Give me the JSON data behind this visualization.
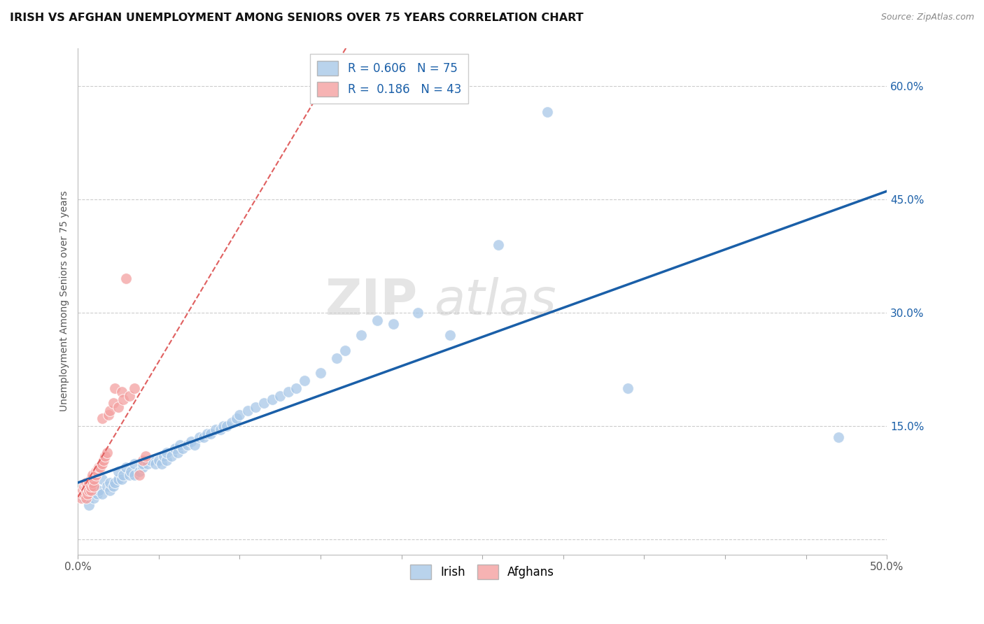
{
  "title": "IRISH VS AFGHAN UNEMPLOYMENT AMONG SENIORS OVER 75 YEARS CORRELATION CHART",
  "source": "Source: ZipAtlas.com",
  "ylabel": "Unemployment Among Seniors over 75 years",
  "xlim": [
    0.0,
    0.5
  ],
  "ylim": [
    -0.02,
    0.65
  ],
  "ytick_positions": [
    0.0,
    0.15,
    0.3,
    0.45,
    0.6
  ],
  "ytick_labels": [
    "",
    "15.0%",
    "30.0%",
    "45.0%",
    "60.0%"
  ],
  "irish_color": "#a8c8e8",
  "afghan_color": "#f4a0a0",
  "irish_line_color": "#1a5fa8",
  "afghan_line_color": "#e06060",
  "irish_R": 0.606,
  "irish_N": 75,
  "afghan_R": 0.186,
  "afghan_N": 43,
  "watermark_zip": "ZIP",
  "watermark_atlas": "atlas",
  "legend_irish": "Irish",
  "legend_afghan": "Afghans",
  "irish_x": [
    0.004,
    0.005,
    0.007,
    0.008,
    0.01,
    0.01,
    0.012,
    0.013,
    0.015,
    0.015,
    0.018,
    0.02,
    0.02,
    0.022,
    0.023,
    0.025,
    0.025,
    0.027,
    0.028,
    0.03,
    0.032,
    0.033,
    0.035,
    0.035,
    0.038,
    0.04,
    0.04,
    0.042,
    0.043,
    0.045,
    0.048,
    0.05,
    0.052,
    0.053,
    0.055,
    0.055,
    0.058,
    0.06,
    0.062,
    0.063,
    0.065,
    0.068,
    0.07,
    0.072,
    0.075,
    0.078,
    0.08,
    0.082,
    0.085,
    0.088,
    0.09,
    0.092,
    0.095,
    0.098,
    0.1,
    0.105,
    0.11,
    0.115,
    0.12,
    0.125,
    0.13,
    0.135,
    0.14,
    0.15,
    0.16,
    0.165,
    0.175,
    0.185,
    0.195,
    0.21,
    0.23,
    0.26,
    0.29,
    0.34,
    0.47
  ],
  "irish_y": [
    0.055,
    0.065,
    0.045,
    0.06,
    0.055,
    0.07,
    0.06,
    0.065,
    0.06,
    0.08,
    0.07,
    0.065,
    0.075,
    0.07,
    0.075,
    0.08,
    0.09,
    0.08,
    0.085,
    0.095,
    0.085,
    0.09,
    0.085,
    0.1,
    0.09,
    0.095,
    0.1,
    0.105,
    0.1,
    0.105,
    0.1,
    0.105,
    0.1,
    0.11,
    0.105,
    0.115,
    0.11,
    0.12,
    0.115,
    0.125,
    0.12,
    0.125,
    0.13,
    0.125,
    0.135,
    0.135,
    0.14,
    0.14,
    0.145,
    0.145,
    0.15,
    0.15,
    0.155,
    0.16,
    0.165,
    0.17,
    0.175,
    0.18,
    0.185,
    0.19,
    0.195,
    0.2,
    0.21,
    0.22,
    0.24,
    0.25,
    0.27,
    0.29,
    0.285,
    0.3,
    0.27,
    0.39,
    0.565,
    0.2,
    0.135
  ],
  "afghan_x": [
    0.002,
    0.003,
    0.003,
    0.004,
    0.004,
    0.005,
    0.005,
    0.005,
    0.005,
    0.006,
    0.006,
    0.007,
    0.007,
    0.008,
    0.008,
    0.008,
    0.009,
    0.009,
    0.01,
    0.01,
    0.011,
    0.011,
    0.012,
    0.013,
    0.014,
    0.015,
    0.015,
    0.016,
    0.017,
    0.018,
    0.019,
    0.02,
    0.022,
    0.023,
    0.025,
    0.027,
    0.028,
    0.03,
    0.032,
    0.035,
    0.038,
    0.04,
    0.042
  ],
  "afghan_y": [
    0.055,
    0.06,
    0.065,
    0.06,
    0.07,
    0.055,
    0.065,
    0.07,
    0.075,
    0.06,
    0.07,
    0.065,
    0.075,
    0.065,
    0.07,
    0.08,
    0.075,
    0.085,
    0.07,
    0.08,
    0.085,
    0.09,
    0.09,
    0.095,
    0.095,
    0.1,
    0.16,
    0.105,
    0.11,
    0.115,
    0.165,
    0.17,
    0.18,
    0.2,
    0.175,
    0.195,
    0.185,
    0.345,
    0.19,
    0.2,
    0.085,
    0.105,
    0.11
  ]
}
